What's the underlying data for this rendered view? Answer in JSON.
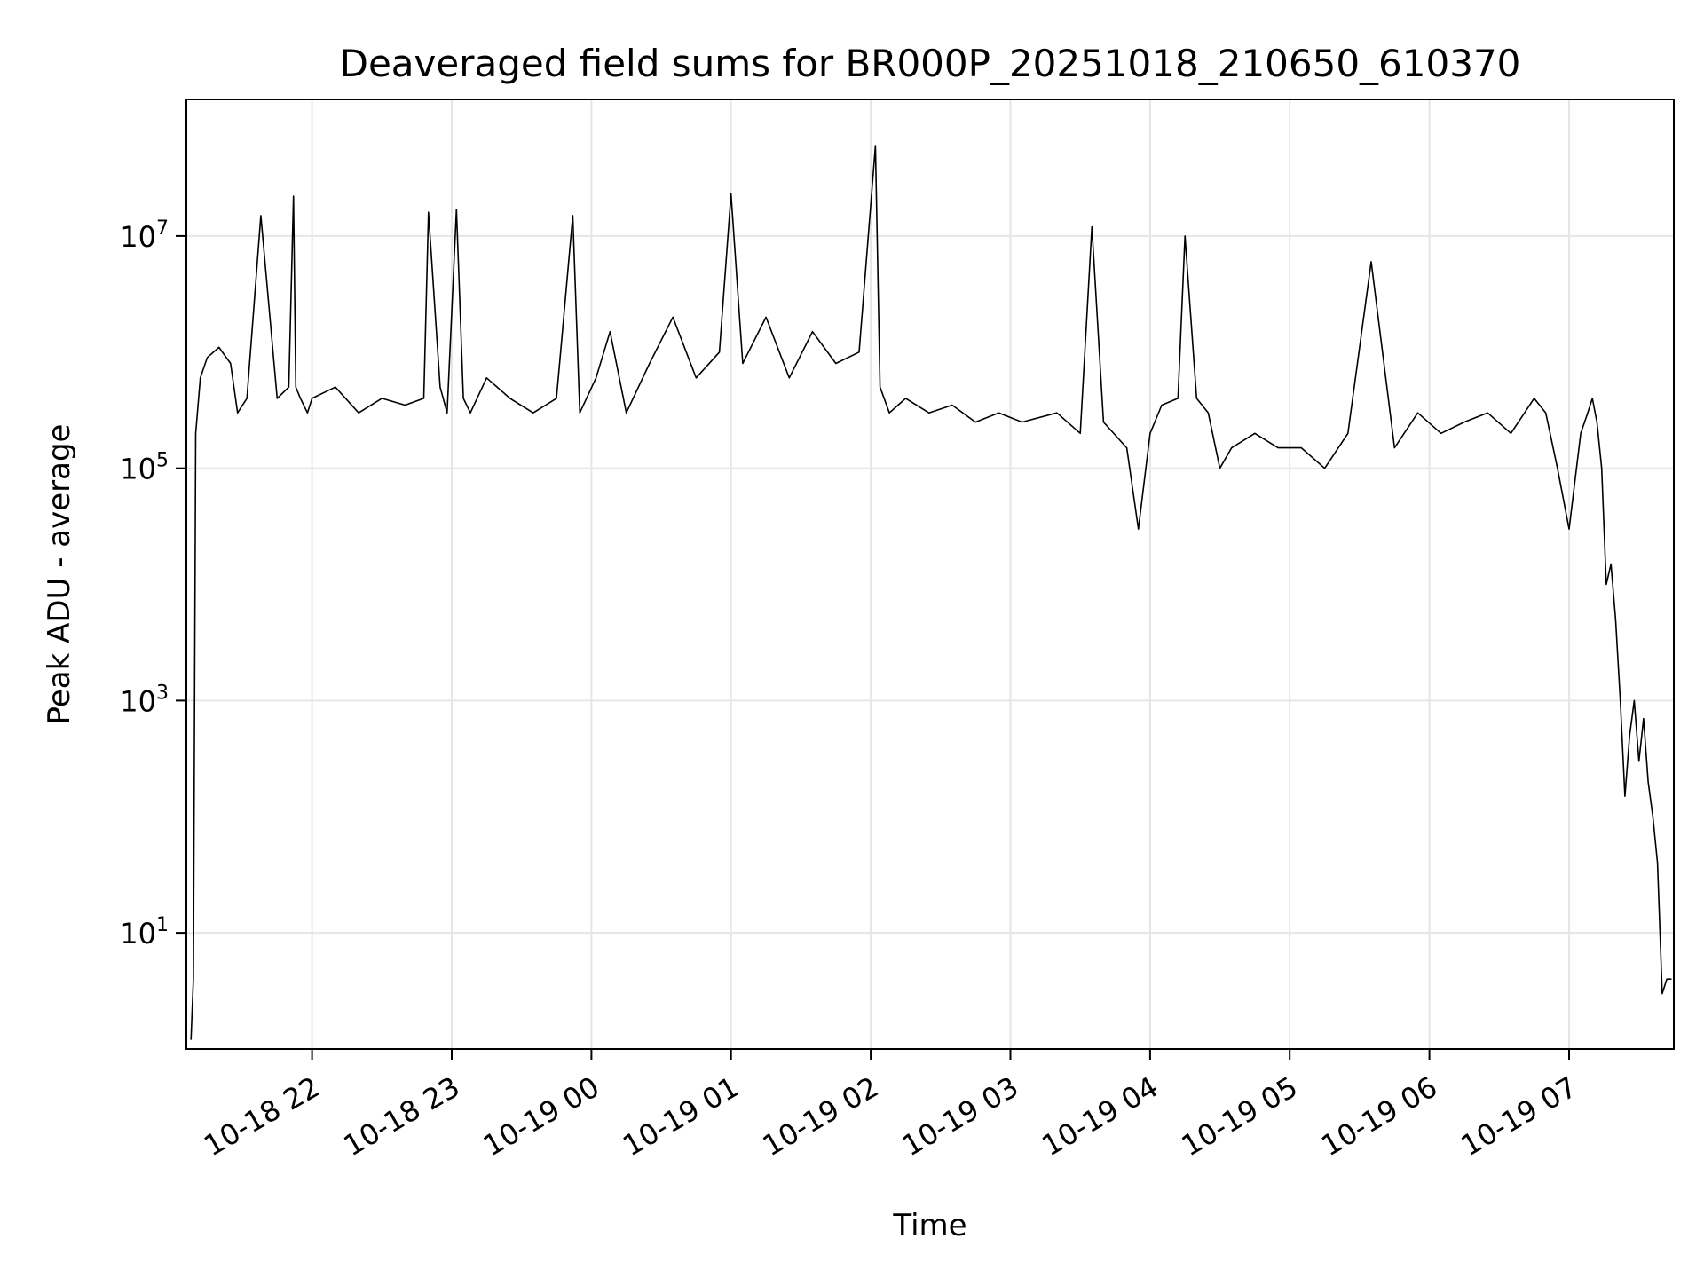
{
  "chart_data": {
    "type": "line",
    "title": "Deaveraged field sums for BR000P_20251018_210650_610370",
    "xlabel": "Time",
    "ylabel": "Peak ADU - average",
    "xlim": [
      "2025-10-18 21:06",
      "2025-10-19 07:45"
    ],
    "ylim": [
      1,
      150000000
    ],
    "yscale": "log",
    "grid": true,
    "line_color": "#000000",
    "x_ticks": [
      {
        "label": "10-18 22",
        "value": "2025-10-18 22:00"
      },
      {
        "label": "10-18 23",
        "value": "2025-10-18 23:00"
      },
      {
        "label": "10-19 00",
        "value": "2025-10-19 00:00"
      },
      {
        "label": "10-19 01",
        "value": "2025-10-19 01:00"
      },
      {
        "label": "10-19 02",
        "value": "2025-10-19 02:00"
      },
      {
        "label": "10-19 03",
        "value": "2025-10-19 03:00"
      },
      {
        "label": "10-19 04",
        "value": "2025-10-19 04:00"
      },
      {
        "label": "10-19 05",
        "value": "2025-10-19 05:00"
      },
      {
        "label": "10-19 06",
        "value": "2025-10-19 06:00"
      },
      {
        "label": "10-19 07",
        "value": "2025-10-19 07:00"
      }
    ],
    "y_ticks": [
      {
        "base": "10",
        "exp": "1",
        "value": 10
      },
      {
        "base": "10",
        "exp": "3",
        "value": 1000
      },
      {
        "base": "10",
        "exp": "5",
        "value": 100000
      },
      {
        "base": "10",
        "exp": "7",
        "value": 10000000
      }
    ],
    "series": [
      {
        "x": [
          "2025-10-18 21:08",
          "2025-10-18 21:09",
          "2025-10-18 21:10",
          "2025-10-18 21:12",
          "2025-10-18 21:15",
          "2025-10-18 21:20",
          "2025-10-18 21:25",
          "2025-10-18 21:28",
          "2025-10-18 21:32",
          "2025-10-18 21:38",
          "2025-10-18 21:45",
          "2025-10-18 21:50",
          "2025-10-18 21:52",
          "2025-10-18 21:53",
          "2025-10-18 21:55",
          "2025-10-18 21:58",
          "2025-10-18 22:00",
          "2025-10-18 22:10",
          "2025-10-18 22:20",
          "2025-10-18 22:30",
          "2025-10-18 22:40",
          "2025-10-18 22:48",
          "2025-10-18 22:50",
          "2025-10-18 22:55",
          "2025-10-18 22:58",
          "2025-10-18 23:02",
          "2025-10-18 23:05",
          "2025-10-18 23:08",
          "2025-10-18 23:15",
          "2025-10-18 23:25",
          "2025-10-18 23:35",
          "2025-10-18 23:45",
          "2025-10-18 23:52",
          "2025-10-18 23:55",
          "2025-10-19 00:02",
          "2025-10-19 00:08",
          "2025-10-19 00:15",
          "2025-10-19 00:25",
          "2025-10-19 00:35",
          "2025-10-19 00:45",
          "2025-10-19 00:55",
          "2025-10-19 01:00",
          "2025-10-19 01:05",
          "2025-10-19 01:15",
          "2025-10-19 01:25",
          "2025-10-19 01:35",
          "2025-10-19 01:45",
          "2025-10-19 01:55",
          "2025-10-19 02:02",
          "2025-10-19 02:04",
          "2025-10-19 02:08",
          "2025-10-19 02:15",
          "2025-10-19 02:25",
          "2025-10-19 02:35",
          "2025-10-19 02:45",
          "2025-10-19 02:55",
          "2025-10-19 03:05",
          "2025-10-19 03:20",
          "2025-10-19 03:30",
          "2025-10-19 03:35",
          "2025-10-19 03:40",
          "2025-10-19 03:50",
          "2025-10-19 03:55",
          "2025-10-19 04:00",
          "2025-10-19 04:05",
          "2025-10-19 04:12",
          "2025-10-19 04:15",
          "2025-10-19 04:20",
          "2025-10-19 04:25",
          "2025-10-19 04:30",
          "2025-10-19 04:35",
          "2025-10-19 04:45",
          "2025-10-19 04:55",
          "2025-10-19 05:05",
          "2025-10-19 05:15",
          "2025-10-19 05:25",
          "2025-10-19 05:35",
          "2025-10-19 05:45",
          "2025-10-19 05:55",
          "2025-10-19 06:05",
          "2025-10-19 06:15",
          "2025-10-19 06:25",
          "2025-10-19 06:35",
          "2025-10-19 06:45",
          "2025-10-19 06:50",
          "2025-10-19 06:55",
          "2025-10-19 07:00",
          "2025-10-19 07:05",
          "2025-10-19 07:08",
          "2025-10-19 07:10",
          "2025-10-19 07:12",
          "2025-10-19 07:14",
          "2025-10-19 07:16",
          "2025-10-19 07:18",
          "2025-10-19 07:20",
          "2025-10-19 07:22",
          "2025-10-19 07:24",
          "2025-10-19 07:26",
          "2025-10-19 07:28",
          "2025-10-19 07:30",
          "2025-10-19 07:32",
          "2025-10-19 07:34",
          "2025-10-19 07:36",
          "2025-10-19 07:38",
          "2025-10-19 07:40",
          "2025-10-19 07:42",
          "2025-10-19 07:44"
        ],
        "values": [
          1.2,
          4,
          200000.0,
          600000.0,
          900000.0,
          1100000.0,
          800000.0,
          300000.0,
          400000.0,
          15000000.0,
          400000.0,
          500000.0,
          22000000.0,
          500000.0,
          400000.0,
          300000.0,
          400000.0,
          500000.0,
          300000.0,
          400000.0,
          350000.0,
          400000.0,
          16000000.0,
          500000.0,
          300000.0,
          17000000.0,
          400000.0,
          300000.0,
          600000.0,
          400000.0,
          300000.0,
          400000.0,
          15000000.0,
          300000.0,
          600000.0,
          1500000.0,
          300000.0,
          800000.0,
          2000000.0,
          600000.0,
          1000000.0,
          23000000.0,
          800000.0,
          2000000.0,
          600000.0,
          1500000.0,
          800000.0,
          1000000.0,
          60000000.0,
          500000.0,
          300000.0,
          400000.0,
          300000.0,
          350000.0,
          250000.0,
          300000.0,
          250000.0,
          300000.0,
          200000.0,
          12000000.0,
          250000.0,
          150000.0,
          30000.0,
          200000.0,
          350000.0,
          400000.0,
          10000000.0,
          400000.0,
          300000.0,
          100000.0,
          150000.0,
          200000.0,
          150000.0,
          150000.0,
          100000.0,
          200000.0,
          6000000.0,
          150000.0,
          300000.0,
          200000.0,
          250000.0,
          300000.0,
          200000.0,
          400000.0,
          300000.0,
          100000.0,
          30000.0,
          200000.0,
          300000.0,
          400000.0,
          250000.0,
          100000.0,
          10000.0,
          15000.0,
          5000.0,
          1000.0,
          150,
          500,
          1000,
          300,
          700,
          200,
          100,
          40,
          3,
          4,
          4
        ]
      }
    ]
  }
}
